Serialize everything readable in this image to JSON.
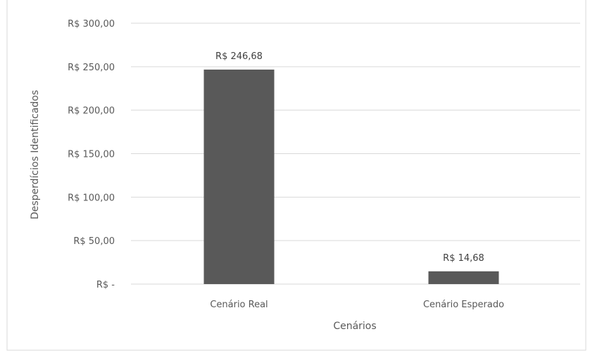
{
  "chart_data": {
    "type": "bar",
    "title": "",
    "xlabel": "Cenários",
    "ylabel": "Desperdícios Identificados",
    "categories": [
      "Cenário Real",
      "Cenário Esperado"
    ],
    "values": [
      246.68,
      14.68
    ],
    "data_labels": [
      "R$ 246,68",
      "R$ 14,68"
    ],
    "ylim": [
      0,
      300
    ],
    "yticks": [
      0,
      50,
      100,
      150,
      200,
      250,
      300
    ],
    "ytick_labels": [
      "R$ -",
      "R$ 50,00",
      "R$ 100,00",
      "R$ 150,00",
      "R$ 200,00",
      "R$ 250,00",
      "R$ 300,00"
    ],
    "grid": true,
    "legend": "none",
    "colors": {
      "bar": "#595959",
      "grid": "#d9d9d9",
      "text": "#595959",
      "label": "#404040"
    }
  }
}
